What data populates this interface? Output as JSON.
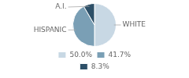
{
  "chart_data": {
    "type": "pie",
    "categories": [
      "WHITE",
      "HISPANIC",
      "A.I."
    ],
    "values": [
      50.0,
      41.7,
      8.3
    ],
    "value_labels": [
      "50.0%",
      "41.7%",
      "8.3%"
    ],
    "colors": [
      "#c8d8e4",
      "#7a9fb5",
      "#2d5068"
    ],
    "legend": "bottom"
  }
}
